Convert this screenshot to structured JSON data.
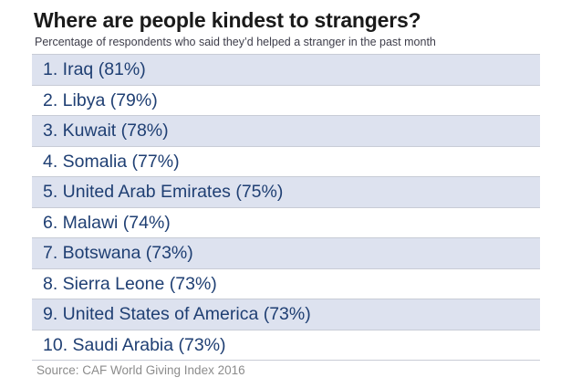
{
  "title": "Where are people kindest to strangers?",
  "subtitle": "Percentage of respondents who said they’d helped a stranger in the past month",
  "rows": [
    "1. Iraq (81%)",
    "2. Libya (79%)",
    "3. Kuwait (78%)",
    "4. Somalia (77%)",
    "5. United Arab Emirates (75%)",
    "6. Malawi (74%)",
    "7. Botswana (73%)",
    "8. Sierra Leone (73%)",
    "9. United States of America (73%)",
    "10. Saudi Arabia (73%)"
  ],
  "source": "Source: CAF World Giving Index 2016",
  "colors": {
    "row_shaded": "#dde2ef",
    "row_plain": "#ffffff",
    "row_text": "#1f3f73",
    "title_text": "#1a1a1a",
    "source_text": "#8c8c8c"
  }
}
